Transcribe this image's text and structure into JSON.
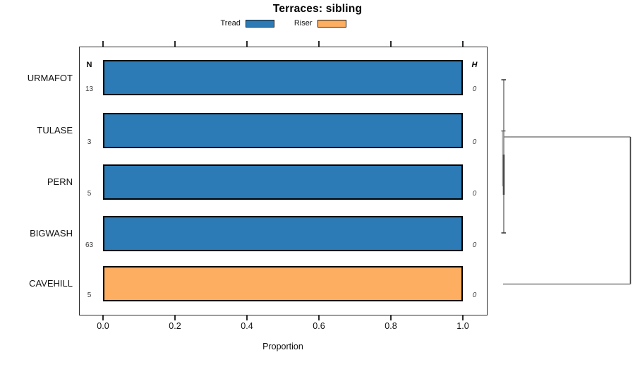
{
  "chart_data": {
    "type": "bar",
    "orientation": "horizontal",
    "title": "Terraces: sibling",
    "xlabel": "Proportion",
    "xlim": [
      0,
      1.08
    ],
    "xticks": [
      "0.0",
      "0.2",
      "0.4",
      "0.6",
      "0.8",
      "1.0"
    ],
    "grid": false,
    "legend_position": "top-center",
    "legend": [
      {
        "name": "Tread",
        "color": "#2c7bb6"
      },
      {
        "name": "Riser",
        "color": "#fdae61"
      }
    ],
    "colors": {
      "tread": "#2c7bb6",
      "riser": "#fdae61",
      "bar_border": "#000000",
      "dendrogram_line": "#7f7f7f"
    },
    "col_headers": {
      "left": "N",
      "right": "H"
    },
    "rows": [
      {
        "label": "URMAFOT",
        "n": "13",
        "series": "Tread",
        "value": 1.0,
        "h": "0"
      },
      {
        "label": "TULASE",
        "n": "3",
        "series": "Tread",
        "value": 1.0,
        "h": "0"
      },
      {
        "label": "PERN",
        "n": "5",
        "series": "Tread",
        "value": 1.0,
        "h": "0"
      },
      {
        "label": "BIGWASH",
        "n": "63",
        "series": "Tread",
        "value": 1.0,
        "h": "0"
      },
      {
        "label": "CAVEHILL",
        "n": "5",
        "series": "Riser",
        "value": 1.0,
        "h": "0"
      }
    ],
    "dendrogram": {
      "side": "right",
      "description": "cluster tree: URMAFOT, TULASE, PERN and BIGWASH merge at height ~0; CAVEHILL joins the cluster at the maximum height",
      "leaf_heights": [
        "0",
        "0",
        "0",
        "0",
        "0"
      ]
    }
  }
}
